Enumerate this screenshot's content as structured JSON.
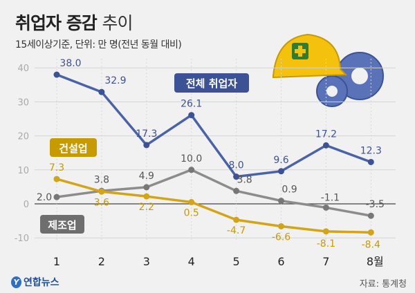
{
  "title_bold": "취업자 증감",
  "title_light": "추이",
  "subtitle": "15세이상기준, 단위: 만 명(전년 동월 대비)",
  "source": "자료: 통계청",
  "logo_text": "연합뉴스",
  "chart_data": {
    "type": "line",
    "categories": [
      "1",
      "2",
      "3",
      "4",
      "5",
      "6",
      "7",
      "8월"
    ],
    "ylim": [
      -10,
      40
    ],
    "yticks": [
      "-10",
      "0",
      "10",
      "20",
      "30",
      "40"
    ],
    "grid": true,
    "series": [
      {
        "name": "전체 취업자",
        "color": "#4a62a8",
        "values": [
          38.0,
          32.9,
          17.3,
          26.1,
          8.0,
          9.6,
          17.2,
          12.3
        ]
      },
      {
        "name": "건설업",
        "color": "#d4a417",
        "values": [
          7.3,
          3.6,
          2.2,
          0.5,
          -4.7,
          -6.6,
          -8.1,
          -8.4
        ]
      },
      {
        "name": "제조업",
        "color": "#8c8c8c",
        "values": [
          2.0,
          3.8,
          4.9,
          10.0,
          3.8,
          0.9,
          -1.1,
          -3.5
        ]
      }
    ]
  }
}
